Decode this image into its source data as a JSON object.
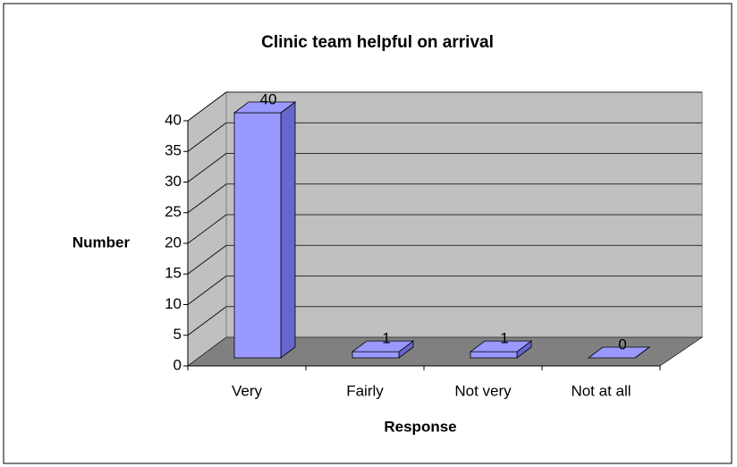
{
  "chart_data": {
    "type": "bar",
    "title": "Clinic team helpful on arrival",
    "categories": [
      "Very",
      "Fairly",
      "Not very",
      "Not at all"
    ],
    "values": [
      40,
      1,
      1,
      0
    ],
    "color": "#9999ff",
    "xlabel": "Response",
    "ylabel": "Number",
    "ylim": [
      0,
      40
    ],
    "yticks": [
      0,
      5,
      10,
      15,
      20,
      25,
      30,
      35,
      40
    ],
    "grid": true
  }
}
